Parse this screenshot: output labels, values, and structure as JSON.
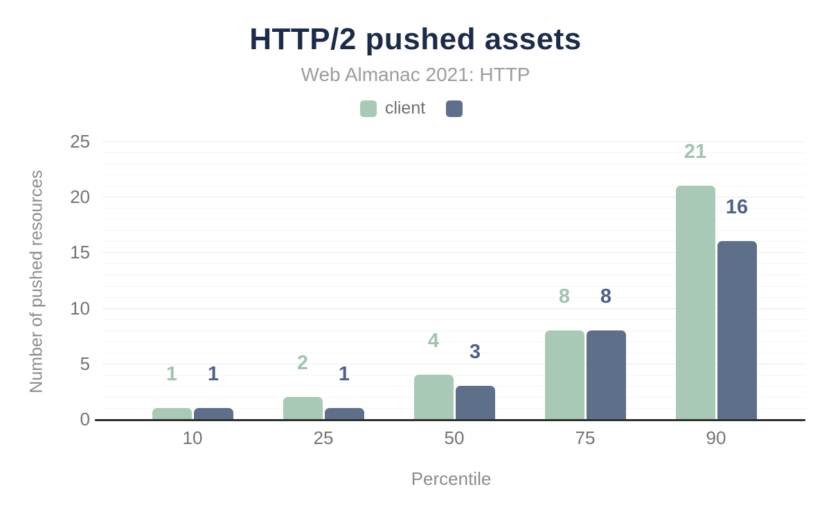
{
  "chart_data": {
    "type": "bar",
    "title": "HTTP/2 pushed assets",
    "subtitle": "Web Almanac 2021: HTTP",
    "categories": [
      "10",
      "25",
      "50",
      "75",
      "90"
    ],
    "series": [
      {
        "name": "client",
        "values": [
          1,
          2,
          4,
          8,
          21
        ],
        "color": "#a8c9b5",
        "label_color": "#9fc4af"
      },
      {
        "name": "",
        "values": [
          1,
          1,
          3,
          8,
          16
        ],
        "color": "#5e7089",
        "label_color": "#4e608a"
      }
    ],
    "xlabel": "Percentile",
    "ylabel": "Number of pushed resources",
    "ylim": [
      0,
      25
    ],
    "yticks": [
      0,
      5,
      10,
      15,
      20,
      25
    ],
    "minor_grid_step": 1,
    "grid": true,
    "legend_position": "top"
  },
  "colors": {
    "title": "#1c2b4a",
    "subtitle": "#9c9c9c",
    "legend_text": "#6f6f6f",
    "tick": "#737373",
    "axis_title": "#8c8c8c",
    "baseline": "#2f2f2f",
    "grid_major": "#e8e8e8",
    "grid_minor": "#f5f5f5",
    "background": "#ffffff"
  }
}
